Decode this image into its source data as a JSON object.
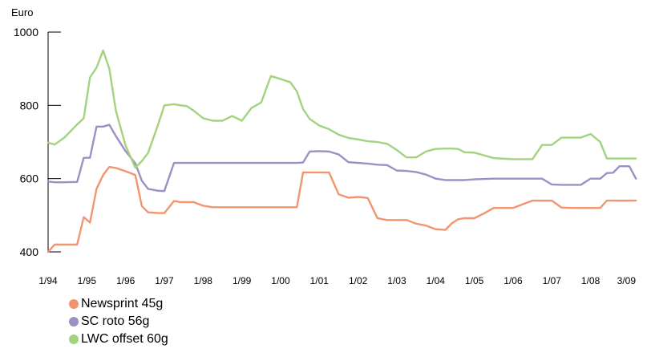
{
  "chart_data": {
    "type": "line",
    "title": "",
    "xlabel": "",
    "ylabel": "Euro",
    "ylim": [
      400,
      1000
    ],
    "ytick_values": [
      400,
      600,
      800,
      1000
    ],
    "ytick_labels": [
      "400",
      "600",
      "800",
      "1000"
    ],
    "xtick_labels": [
      "1/94",
      "1/95",
      "1/96",
      "1/97",
      "1/98",
      "1/99",
      "1/00",
      "1/01",
      "1/02",
      "1/03",
      "1/04",
      "1/05",
      "1/06",
      "1/07",
      "1/08",
      "3/09"
    ],
    "xtick_values": [
      1994,
      1995,
      1996,
      1997,
      1998,
      1999,
      2000,
      2001,
      2002,
      2003,
      2004,
      2005,
      2006,
      2007,
      2008,
      2009.1667
    ],
    "xlim": [
      1994,
      2009.1667
    ],
    "grid": false,
    "legend_position": "bottom-left",
    "series": [
      {
        "name": "Newsprint 45g",
        "color": "#f2956e",
        "x": [
          1994.0,
          1994.17,
          1994.42,
          1994.75,
          1994.92,
          1995.08,
          1995.25,
          1995.42,
          1995.58,
          1995.75,
          1996.0,
          1996.25,
          1996.42,
          1996.58,
          1996.83,
          1997.0,
          1997.25,
          1997.42,
          1997.58,
          1997.75,
          1998.0,
          1998.25,
          1998.5,
          1998.75,
          1999.0,
          1999.5,
          2000.0,
          2000.42,
          2000.58,
          2000.75,
          2001.0,
          2001.25,
          2001.5,
          2001.75,
          2002.0,
          2002.25,
          2002.5,
          2002.75,
          2003.0,
          2003.25,
          2003.5,
          2003.75,
          2004.0,
          2004.25,
          2004.42,
          2004.58,
          2004.75,
          2005.0,
          2005.25,
          2005.5,
          2005.75,
          2006.0,
          2006.25,
          2006.5,
          2006.75,
          2007.0,
          2007.25,
          2007.5,
          2007.75,
          2008.0,
          2008.25,
          2008.42,
          2008.58,
          2008.75,
          2009.0,
          2009.17
        ],
        "y": [
          400,
          420,
          420,
          420,
          495,
          480,
          572,
          610,
          632,
          629,
          620,
          610,
          525,
          508,
          506,
          506,
          539,
          536,
          536,
          536,
          526,
          522,
          522,
          522,
          522,
          522,
          522,
          522,
          617,
          617,
          617,
          617,
          557,
          548,
          550,
          547,
          492,
          487,
          487,
          487,
          477,
          472,
          462,
          460,
          478,
          489,
          492,
          492,
          505,
          520,
          520,
          520,
          530,
          540,
          540,
          540,
          521,
          520,
          520,
          520,
          520,
          540,
          540,
          540,
          540,
          540
        ]
      },
      {
        "name": "SC roto 56g",
        "color": "#9e8fc4",
        "x": [
          1994.0,
          1994.17,
          1994.42,
          1994.75,
          1994.92,
          1995.08,
          1995.25,
          1995.42,
          1995.58,
          1995.75,
          1996.0,
          1996.25,
          1996.42,
          1996.58,
          1996.83,
          1997.0,
          1997.25,
          1997.42,
          1997.58,
          1997.75,
          1998.0,
          1998.5,
          1999.0,
          1999.5,
          2000.0,
          2000.42,
          2000.58,
          2000.75,
          2001.0,
          2001.25,
          2001.5,
          2001.75,
          2002.0,
          2002.25,
          2002.5,
          2002.75,
          2003.0,
          2003.25,
          2003.5,
          2003.75,
          2004.0,
          2004.25,
          2004.42,
          2004.58,
          2004.75,
          2005.0,
          2005.5,
          2006.0,
          2006.25,
          2006.5,
          2006.75,
          2007.0,
          2007.25,
          2007.5,
          2007.75,
          2008.0,
          2008.25,
          2008.42,
          2008.58,
          2008.75,
          2009.0,
          2009.17
        ],
        "y": [
          592,
          590,
          590,
          591,
          657,
          657,
          742,
          742,
          747,
          716,
          675,
          642,
          594,
          572,
          567,
          566,
          643,
          643,
          643,
          643,
          643,
          643,
          643,
          643,
          643,
          643,
          644,
          674,
          675,
          674,
          666,
          645,
          643,
          641,
          638,
          637,
          622,
          621,
          618,
          611,
          600,
          596,
          596,
          596,
          596,
          598,
          600,
          600,
          600,
          600,
          600,
          584,
          583,
          583,
          583,
          600,
          600,
          615,
          616,
          634,
          634,
          600
        ]
      },
      {
        "name": "LWC offset 60g",
        "color": "#a3d37f",
        "x": [
          1994.0,
          1994.17,
          1994.42,
          1994.75,
          1994.92,
          1995.08,
          1995.25,
          1995.42,
          1995.58,
          1995.75,
          1996.0,
          1996.25,
          1996.42,
          1996.58,
          1996.83,
          1997.0,
          1997.25,
          1997.42,
          1997.58,
          1997.75,
          1998.0,
          1998.25,
          1998.5,
          1998.75,
          1999.0,
          1999.25,
          1999.5,
          1999.75,
          2000.0,
          2000.25,
          2000.42,
          2000.58,
          2000.75,
          2001.0,
          2001.25,
          2001.5,
          2001.75,
          2002.0,
          2002.25,
          2002.5,
          2002.75,
          2003.0,
          2003.25,
          2003.5,
          2003.75,
          2004.0,
          2004.25,
          2004.42,
          2004.58,
          2004.75,
          2005.0,
          2005.5,
          2006.0,
          2006.25,
          2006.5,
          2006.75,
          2007.0,
          2007.25,
          2007.5,
          2007.75,
          2008.0,
          2008.25,
          2008.42,
          2008.58,
          2008.75,
          2009.0,
          2009.17
        ],
        "y": [
          698,
          693,
          712,
          748,
          765,
          876,
          903,
          950,
          900,
          785,
          690,
          630,
          648,
          670,
          745,
          800,
          803,
          800,
          798,
          786,
          765,
          758,
          758,
          771,
          758,
          793,
          808,
          880,
          872,
          863,
          838,
          790,
          763,
          745,
          735,
          720,
          711,
          707,
          702,
          700,
          695,
          678,
          658,
          658,
          674,
          681,
          682,
          682,
          681,
          672,
          671,
          656,
          653,
          653,
          653,
          692,
          692,
          712,
          712,
          712,
          722,
          700,
          655,
          655,
          655,
          655,
          655
        ]
      }
    ]
  }
}
